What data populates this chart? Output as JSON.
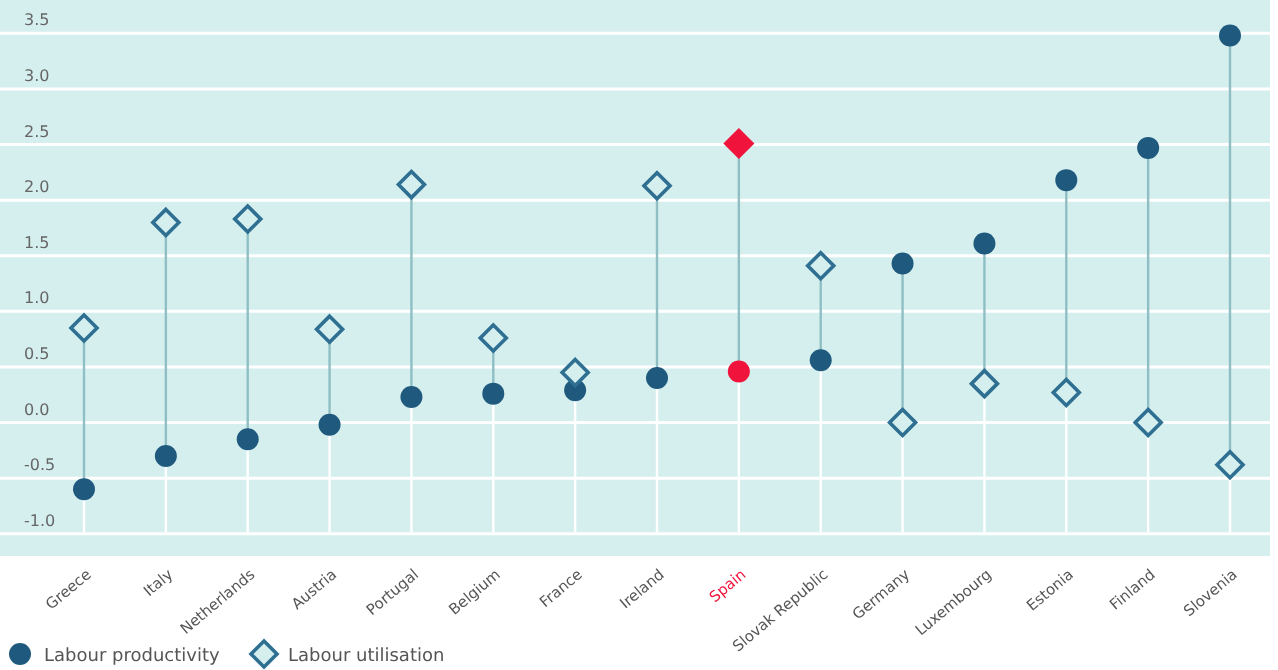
{
  "chart_data": {
    "type": "scatter",
    "categories": [
      "Greece",
      "Italy",
      "Netherlands",
      "Austria",
      "Portugal",
      "Belgium",
      "France",
      "Ireland",
      "Spain",
      "Slovak Republic",
      "Germany",
      "Luxembourg",
      "Estonia",
      "Finland",
      "Slovenia"
    ],
    "series": [
      {
        "name": "Labour productivity",
        "color": "#1f5a7e",
        "marker": "circle",
        "colors": [
          "#1f5a7e",
          "#1f5a7e",
          "#1f5a7e",
          "#1f5a7e",
          "#1f5a7e",
          "#1f5a7e",
          "#1f5a7e",
          "#1f5a7e",
          "#f0143c",
          "#1f5a7e",
          "#1f5a7e",
          "#1f5a7e",
          "#1f5a7e",
          "#1f5a7e",
          "#1f5a7e"
        ],
        "values": [
          -0.6,
          -0.3,
          -0.15,
          -0.02,
          0.23,
          0.26,
          0.29,
          0.4,
          0.46,
          0.56,
          1.43,
          1.61,
          2.18,
          2.47,
          3.48
        ]
      },
      {
        "name": "Labour utilisation",
        "color": "#2e6f92",
        "marker": "diamond",
        "colors": [
          "#2e6f92",
          "#2e6f92",
          "#2e6f92",
          "#2e6f92",
          "#2e6f92",
          "#2e6f92",
          "#2e6f92",
          "#2e6f92",
          "#f0143c",
          "#2e6f92",
          "#2e6f92",
          "#2e6f92",
          "#2e6f92",
          "#2e6f92",
          "#2e6f92"
        ],
        "values": [
          0.85,
          1.8,
          1.83,
          0.84,
          2.14,
          0.76,
          0.45,
          2.13,
          2.51,
          1.41,
          0.0,
          0.35,
          0.27,
          0.0,
          -0.38
        ]
      }
    ],
    "ylim": [
      -1.2,
      3.8
    ],
    "yticks": [
      {
        "value": -1,
        "label": "-1.0"
      },
      {
        "value": -0.5,
        "label": "-0.5"
      },
      {
        "value": 0,
        "label": "0.0"
      },
      {
        "value": 0.5,
        "label": "0.5"
      },
      {
        "value": 1,
        "label": "1.0"
      },
      {
        "value": 1.5,
        "label": "1.5"
      },
      {
        "value": 2,
        "label": "2.0"
      },
      {
        "value": 2.5,
        "label": "2.5"
      },
      {
        "value": 3,
        "label": "3.0"
      },
      {
        "value": 3.5,
        "label": "3.5"
      }
    ],
    "grid": "y",
    "legend": "bottom left"
  }
}
